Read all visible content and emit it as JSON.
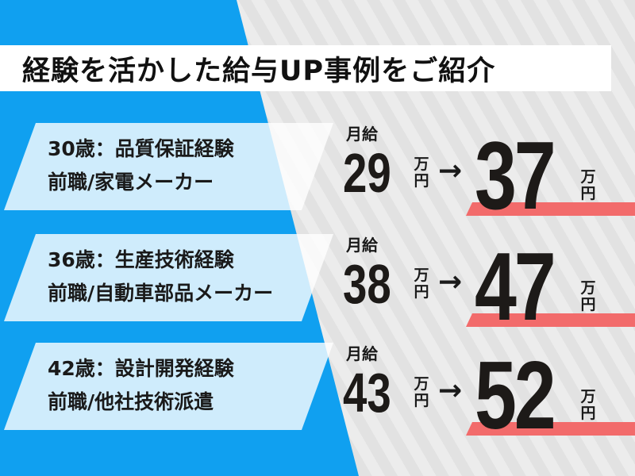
{
  "title": "経験を活かした給与UP事例をご紹介",
  "colors": {
    "blue": "#10a0f0",
    "card": "#d0eefd",
    "accent_bar": "#f26b6b",
    "background": "#e4e4e4"
  },
  "monthly_label": "月給",
  "unit": {
    "man": "万",
    "en": "円"
  },
  "arrow": "→",
  "cases": [
    {
      "line1": "30歳：品質保証経験",
      "line2": "前職/家電メーカー",
      "before": "29",
      "after": "37"
    },
    {
      "line1": "36歳：生産技術経験",
      "line2": "前職/自動車部品メーカー",
      "before": "38",
      "after": "47"
    },
    {
      "line1": "42歳：設計開発経験",
      "line2": "前職/他社技術派遣",
      "before": "43",
      "after": "52"
    }
  ]
}
